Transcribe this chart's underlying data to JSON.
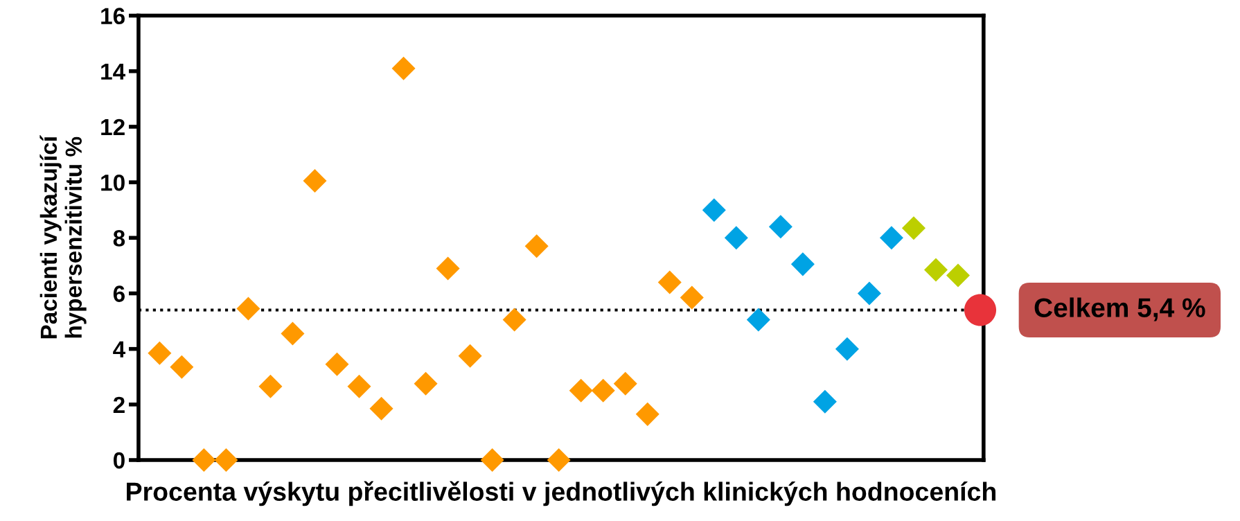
{
  "chart_data": {
    "type": "scatter",
    "xlabel": "Procenta výskytu přecitlivělosti v jednotlivých klinických hodnoceních",
    "ylabel": "Pacienti vykazující\nhypersenzitivitu %",
    "categories": [
      null,
      null,
      null,
      null,
      null,
      null,
      null,
      null,
      null,
      null,
      null,
      null,
      null,
      null,
      null,
      null,
      null,
      null,
      null,
      null,
      null,
      null,
      null,
      null,
      null,
      null,
      null,
      null,
      null,
      null,
      null,
      null,
      null,
      null,
      null,
      null,
      null,
      null
    ],
    "series": [
      {
        "color": "#ff9900",
        "marker": "diamond",
        "values": [
          3.85,
          3.35,
          0,
          0,
          5.45,
          2.65,
          4.55,
          10.05,
          3.45,
          2.65,
          1.85,
          14.1,
          2.75,
          6.9,
          3.75,
          0,
          5.05,
          7.7,
          0,
          2.5,
          2.5,
          2.75,
          1.65,
          6.4,
          5.85,
          null,
          null,
          null,
          null,
          null,
          null,
          null,
          null,
          null,
          null,
          null,
          null,
          null
        ]
      },
      {
        "color": "#00a3e4",
        "marker": "diamond",
        "values": [
          null,
          null,
          null,
          null,
          null,
          null,
          null,
          null,
          null,
          null,
          null,
          null,
          null,
          null,
          null,
          null,
          null,
          null,
          null,
          null,
          null,
          null,
          null,
          null,
          null,
          9.0,
          8.0,
          5.05,
          8.4,
          7.05,
          2.1,
          4.0,
          6.0,
          8.0,
          null,
          null,
          null,
          null
        ]
      },
      {
        "color": "#bccf00",
        "marker": "diamond",
        "values": [
          null,
          null,
          null,
          null,
          null,
          null,
          null,
          null,
          null,
          null,
          null,
          null,
          null,
          null,
          null,
          null,
          null,
          null,
          null,
          null,
          null,
          null,
          null,
          null,
          null,
          null,
          null,
          null,
          null,
          null,
          null,
          null,
          null,
          null,
          8.35,
          6.85,
          6.65,
          null
        ]
      },
      {
        "color": "#e8333a",
        "marker": "circle",
        "values": [
          null,
          null,
          null,
          null,
          null,
          null,
          null,
          null,
          null,
          null,
          null,
          null,
          null,
          null,
          null,
          null,
          null,
          null,
          null,
          null,
          null,
          null,
          null,
          null,
          null,
          null,
          null,
          null,
          null,
          null,
          null,
          null,
          null,
          null,
          null,
          null,
          null,
          5.4
        ]
      }
    ],
    "ylim": [
      0,
      16
    ],
    "yticks": [
      0,
      2,
      4,
      6,
      8,
      10,
      12,
      14,
      16
    ],
    "tick_labels": "y",
    "grid": false,
    "legend": false,
    "ref_lines": [
      {
        "axis": "y",
        "value": 5.4,
        "color": "#000000",
        "line_style": "dotted"
      }
    ],
    "annotations": [
      "Celkem 5,4 %"
    ]
  }
}
